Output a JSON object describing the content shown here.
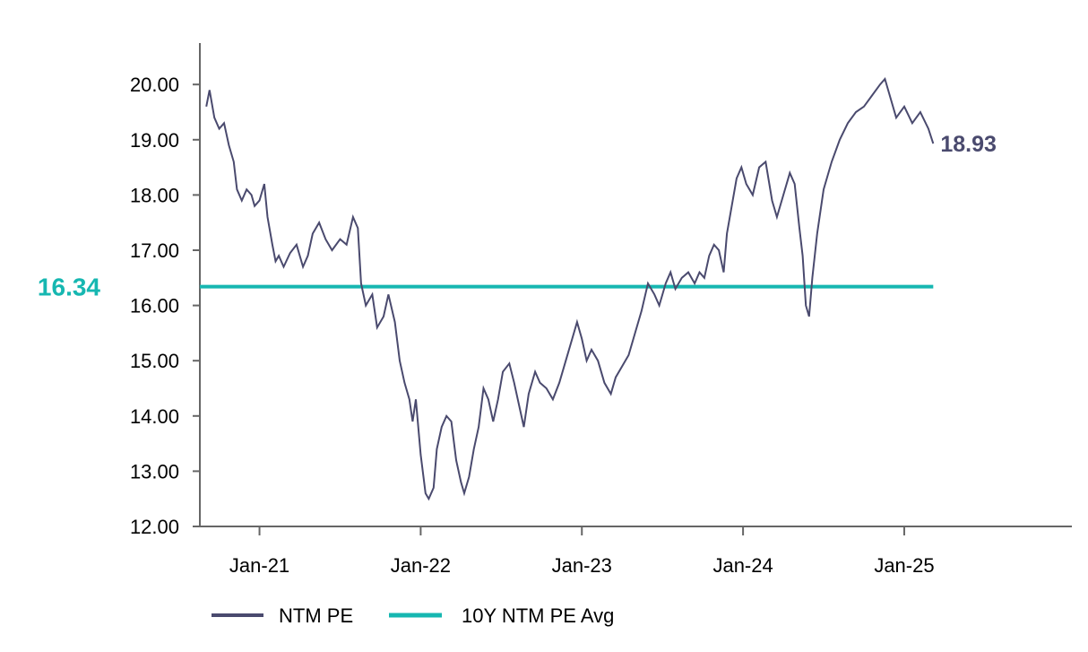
{
  "chart_data": {
    "type": "line",
    "title": "",
    "xlabel": "",
    "ylabel": "",
    "ylim": [
      12,
      20.75
    ],
    "xlim": [
      2020.63,
      2026.04
    ],
    "y_ticks": [
      12,
      13,
      14,
      15,
      16,
      17,
      18,
      19,
      20
    ],
    "y_tick_labels": [
      "12.00",
      "13.00",
      "14.00",
      "15.00",
      "16.00",
      "17.00",
      "18.00",
      "19.00",
      "20.00"
    ],
    "x_ticks": [
      {
        "label": "Jan-21",
        "value": 2021.0
      },
      {
        "label": "Jan-22",
        "value": 2022.0
      },
      {
        "label": "Jan-23",
        "value": 2023.0
      },
      {
        "label": "Jan-24",
        "value": 2024.0
      },
      {
        "label": "Jan-25",
        "value": 2025.0
      }
    ],
    "grid": false,
    "legend_position": "bottom",
    "series": [
      {
        "name": "NTM PE",
        "color": "#4a4a6e",
        "line_style": "solid",
        "points": [
          [
            2020.67,
            19.6
          ],
          [
            2020.69,
            19.9
          ],
          [
            2020.72,
            19.4
          ],
          [
            2020.75,
            19.2
          ],
          [
            2020.78,
            19.3
          ],
          [
            2020.81,
            18.9
          ],
          [
            2020.84,
            18.6
          ],
          [
            2020.86,
            18.1
          ],
          [
            2020.89,
            17.9
          ],
          [
            2020.92,
            18.1
          ],
          [
            2020.95,
            18.0
          ],
          [
            2020.97,
            17.8
          ],
          [
            2021.0,
            17.9
          ],
          [
            2021.03,
            18.2
          ],
          [
            2021.05,
            17.6
          ],
          [
            2021.08,
            17.1
          ],
          [
            2021.1,
            16.8
          ],
          [
            2021.12,
            16.9
          ],
          [
            2021.15,
            16.7
          ],
          [
            2021.19,
            16.95
          ],
          [
            2021.23,
            17.1
          ],
          [
            2021.27,
            16.7
          ],
          [
            2021.3,
            16.9
          ],
          [
            2021.33,
            17.3
          ],
          [
            2021.37,
            17.5
          ],
          [
            2021.41,
            17.2
          ],
          [
            2021.45,
            17.0
          ],
          [
            2021.5,
            17.2
          ],
          [
            2021.54,
            17.1
          ],
          [
            2021.58,
            17.6
          ],
          [
            2021.61,
            17.4
          ],
          [
            2021.63,
            16.4
          ],
          [
            2021.66,
            16.0
          ],
          [
            2021.7,
            16.2
          ],
          [
            2021.73,
            15.6
          ],
          [
            2021.77,
            15.8
          ],
          [
            2021.8,
            16.2
          ],
          [
            2021.84,
            15.7
          ],
          [
            2021.87,
            15.0
          ],
          [
            2021.9,
            14.6
          ],
          [
            2021.93,
            14.3
          ],
          [
            2021.95,
            13.9
          ],
          [
            2021.97,
            14.3
          ],
          [
            2022.0,
            13.3
          ],
          [
            2022.03,
            12.6
          ],
          [
            2022.05,
            12.5
          ],
          [
            2022.08,
            12.7
          ],
          [
            2022.1,
            13.4
          ],
          [
            2022.13,
            13.8
          ],
          [
            2022.16,
            14.0
          ],
          [
            2022.19,
            13.9
          ],
          [
            2022.22,
            13.2
          ],
          [
            2022.25,
            12.8
          ],
          [
            2022.27,
            12.6
          ],
          [
            2022.3,
            12.9
          ],
          [
            2022.33,
            13.4
          ],
          [
            2022.36,
            13.8
          ],
          [
            2022.39,
            14.5
          ],
          [
            2022.42,
            14.3
          ],
          [
            2022.45,
            13.9
          ],
          [
            2022.48,
            14.3
          ],
          [
            2022.51,
            14.8
          ],
          [
            2022.55,
            14.95
          ],
          [
            2022.58,
            14.6
          ],
          [
            2022.61,
            14.2
          ],
          [
            2022.64,
            13.8
          ],
          [
            2022.67,
            14.4
          ],
          [
            2022.71,
            14.8
          ],
          [
            2022.74,
            14.6
          ],
          [
            2022.78,
            14.5
          ],
          [
            2022.82,
            14.3
          ],
          [
            2022.86,
            14.6
          ],
          [
            2022.9,
            15.0
          ],
          [
            2022.94,
            15.4
          ],
          [
            2022.97,
            15.7
          ],
          [
            2023.0,
            15.4
          ],
          [
            2023.03,
            15.0
          ],
          [
            2023.06,
            15.2
          ],
          [
            2023.1,
            15.0
          ],
          [
            2023.14,
            14.6
          ],
          [
            2023.18,
            14.4
          ],
          [
            2023.21,
            14.7
          ],
          [
            2023.25,
            14.9
          ],
          [
            2023.29,
            15.1
          ],
          [
            2023.33,
            15.5
          ],
          [
            2023.37,
            15.9
          ],
          [
            2023.41,
            16.4
          ],
          [
            2023.45,
            16.2
          ],
          [
            2023.48,
            16.0
          ],
          [
            2023.52,
            16.4
          ],
          [
            2023.55,
            16.6
          ],
          [
            2023.58,
            16.3
          ],
          [
            2023.62,
            16.5
          ],
          [
            2023.66,
            16.6
          ],
          [
            2023.7,
            16.4
          ],
          [
            2023.73,
            16.6
          ],
          [
            2023.76,
            16.5
          ],
          [
            2023.79,
            16.9
          ],
          [
            2023.82,
            17.1
          ],
          [
            2023.85,
            17.0
          ],
          [
            2023.88,
            16.6
          ],
          [
            2023.9,
            17.3
          ],
          [
            2023.93,
            17.8
          ],
          [
            2023.96,
            18.3
          ],
          [
            2023.99,
            18.5
          ],
          [
            2024.02,
            18.2
          ],
          [
            2024.06,
            18.0
          ],
          [
            2024.1,
            18.5
          ],
          [
            2024.14,
            18.6
          ],
          [
            2024.18,
            17.9
          ],
          [
            2024.21,
            17.6
          ],
          [
            2024.25,
            18.0
          ],
          [
            2024.29,
            18.4
          ],
          [
            2024.32,
            18.2
          ],
          [
            2024.35,
            17.4
          ],
          [
            2024.37,
            16.9
          ],
          [
            2024.39,
            16.0
          ],
          [
            2024.41,
            15.8
          ],
          [
            2024.43,
            16.5
          ],
          [
            2024.46,
            17.3
          ],
          [
            2024.5,
            18.1
          ],
          [
            2024.55,
            18.6
          ],
          [
            2024.6,
            19.0
          ],
          [
            2024.65,
            19.3
          ],
          [
            2024.7,
            19.5
          ],
          [
            2024.75,
            19.6
          ],
          [
            2024.8,
            19.8
          ],
          [
            2024.85,
            20.0
          ],
          [
            2024.88,
            20.1
          ],
          [
            2024.91,
            19.8
          ],
          [
            2024.95,
            19.4
          ],
          [
            2025.0,
            19.6
          ],
          [
            2025.05,
            19.3
          ],
          [
            2025.1,
            19.5
          ],
          [
            2025.15,
            19.2
          ],
          [
            2025.18,
            18.93
          ]
        ]
      },
      {
        "name": "10Y NTM PE Avg",
        "color": "#16b7b1",
        "line_style": "solid",
        "points": [
          [
            2020.63,
            16.34
          ],
          [
            2025.18,
            16.34
          ]
        ]
      }
    ],
    "annotations": [
      {
        "series": "NTM PE",
        "text": "18.93",
        "color": "#4a4a6e",
        "position": "right-end"
      },
      {
        "series": "10Y NTM PE Avg",
        "text": "16.34",
        "color": "#16b7b1",
        "position": "left-axis"
      }
    ],
    "legend": [
      {
        "label": "NTM PE",
        "color": "#4a4a6e"
      },
      {
        "label": "10Y NTM PE Avg",
        "color": "#16b7b1"
      }
    ]
  }
}
